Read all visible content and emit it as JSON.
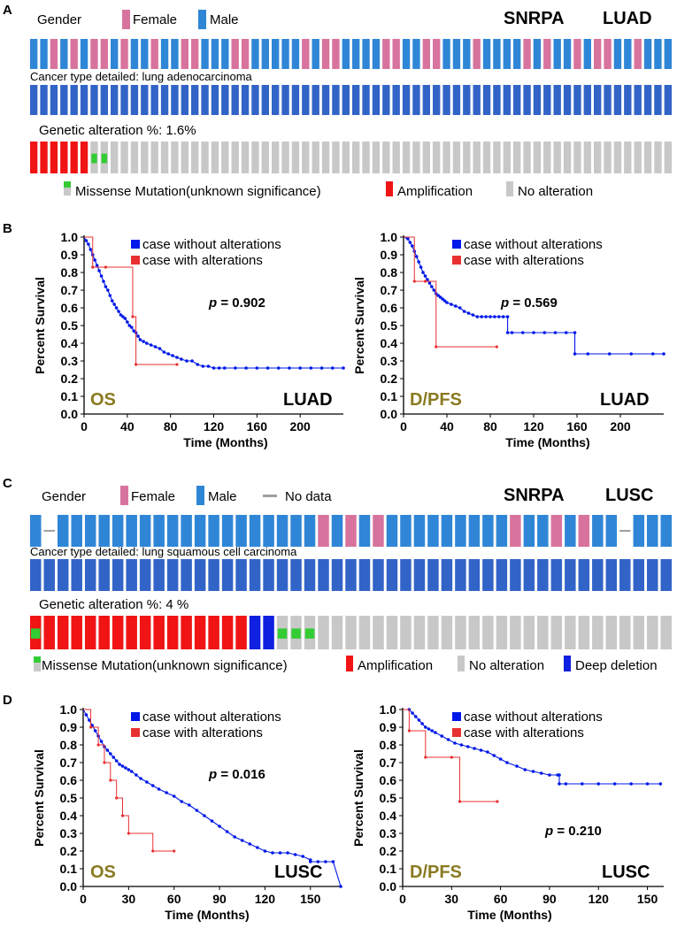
{
  "colors": {
    "female": "#d8739e",
    "male": "#2f86d6",
    "cancer_type": "#3264c8",
    "amplification": "#f01414",
    "deep_deletion": "#1020e0",
    "missense": "#33cc33",
    "no_alteration": "#c8c8c8",
    "no_data": "#a0a0a0",
    "km_without": "#0018e8",
    "km_with": "#e83030",
    "annotation_olive": "#8a7a20"
  },
  "panels": {
    "A": {
      "letter": "A",
      "gender_label": "Gender",
      "female_label": "Female",
      "male_label": "Male",
      "gene": "SNRPA",
      "cancer": "LUAD",
      "cancer_type_label": "Cancer type detailed: lung adenocarcinoma",
      "alteration_label": "Genetic alteration %:  1.6%",
      "legend": {
        "missense": "Missense Mutation(unknown significance)",
        "amplification": "Amplification",
        "no_alteration": "No alteration"
      },
      "gender_track": "MMFMFMFFMFMMFMMFFMMMFFMMMMMFMFFMMMMFFMMFFMMMFMMMMFMFMMFMFFMMFMMM",
      "alteration_track": "AAAAAANNNNNNNNNNNNNNNNNNNNNNNNNNNNNNNNNNNNNNNNNNNNNNNNNNNNNNNNNNN",
      "missense_indices": [
        6,
        7
      ]
    },
    "C": {
      "letter": "C",
      "gender_label": "Gender",
      "female_label": "Female",
      "male_label": "Male",
      "no_data_label": "No data",
      "gene": "SNRPA",
      "cancer": "LUSC",
      "cancer_type_label": "Cancer type detailed: lung squamous cell carcinoma",
      "alteration_label": "Genetic alteration %:  4 %",
      "legend": {
        "missense": "Missense Mutation(unknown significance)",
        "amplification": "Amplification",
        "no_alteration": "No alteration",
        "deep_deletion": "Deep deletion"
      },
      "gender_track": "MXMMMMMMMMMMMMMMMMMMMFMFMFMMMMMMMMMFMMFMFMMXMMM",
      "alteration_track": "AAAAAAAAAAAAAAAADDNNNNNNNNNNNNNNNNNNNNNNNNNNNNNN",
      "missense_indices": [
        0,
        18,
        19,
        20
      ]
    }
  },
  "chart_data": [
    {
      "id": "B-OS",
      "panel_letter": "B",
      "type": "line",
      "title": "",
      "xlabel": "Time (Months)",
      "ylabel": "Percent Survival",
      "xlim": [
        0,
        240
      ],
      "ylim": [
        0,
        1.0
      ],
      "xticks": [
        0,
        40,
        80,
        120,
        160,
        200
      ],
      "yticks": [
        0.0,
        0.1,
        0.2,
        0.3,
        0.4,
        0.5,
        0.6,
        0.7,
        0.8,
        0.9,
        1.0
      ],
      "p_value": "= 0.902",
      "endpoint": "OS",
      "cancer": "LUAD",
      "series": [
        {
          "name": "case without alterations",
          "key": "without",
          "x": [
            0,
            2,
            4,
            6,
            8,
            10,
            12,
            14,
            16,
            18,
            20,
            22,
            24,
            26,
            28,
            30,
            32,
            34,
            36,
            38,
            40,
            42,
            44,
            46,
            48,
            50,
            52,
            55,
            58,
            62,
            66,
            70,
            74,
            78,
            82,
            86,
            90,
            95,
            100,
            105,
            110,
            115,
            120,
            125,
            130,
            140,
            150,
            160,
            170,
            180,
            190,
            200,
            210,
            220,
            230,
            240
          ],
          "y": [
            1.0,
            0.98,
            0.96,
            0.93,
            0.9,
            0.87,
            0.84,
            0.81,
            0.78,
            0.75,
            0.72,
            0.7,
            0.67,
            0.64,
            0.62,
            0.6,
            0.58,
            0.56,
            0.55,
            0.54,
            0.52,
            0.5,
            0.49,
            0.47,
            0.46,
            0.44,
            0.42,
            0.41,
            0.4,
            0.39,
            0.38,
            0.37,
            0.35,
            0.34,
            0.33,
            0.32,
            0.31,
            0.3,
            0.3,
            0.28,
            0.27,
            0.27,
            0.26,
            0.26,
            0.26,
            0.26,
            0.26,
            0.26,
            0.26,
            0.26,
            0.26,
            0.26,
            0.26,
            0.26,
            0.26,
            0.26
          ]
        },
        {
          "name": "case with alterations",
          "key": "with",
          "x": [
            0,
            8,
            8,
            20,
            20,
            45,
            45,
            48,
            48,
            86
          ],
          "y": [
            1.0,
            1.0,
            0.83,
            0.83,
            0.83,
            0.83,
            0.55,
            0.55,
            0.28,
            0.28
          ]
        }
      ]
    },
    {
      "id": "B-DPFS",
      "panel_letter": "",
      "type": "line",
      "title": "",
      "xlabel": "Time (Months)",
      "ylabel": "Percent Survival",
      "xlim": [
        0,
        240
      ],
      "ylim": [
        0,
        1.0
      ],
      "xticks": [
        0,
        40,
        80,
        120,
        160,
        200
      ],
      "yticks": [
        0.0,
        0.1,
        0.2,
        0.3,
        0.4,
        0.5,
        0.6,
        0.7,
        0.8,
        0.9,
        1.0
      ],
      "p_value": "= 0.569",
      "endpoint": "D/PFS",
      "cancer": "LUAD",
      "series": [
        {
          "name": "case without alterations",
          "key": "without",
          "x": [
            0,
            4,
            6,
            8,
            10,
            12,
            14,
            16,
            18,
            20,
            22,
            24,
            26,
            28,
            30,
            32,
            34,
            36,
            38,
            40,
            44,
            48,
            52,
            56,
            60,
            64,
            68,
            72,
            76,
            80,
            84,
            88,
            92,
            96,
            96,
            100,
            110,
            120,
            130,
            140,
            150,
            158,
            158,
            170,
            190,
            210,
            230,
            240
          ],
          "y": [
            1.0,
            0.99,
            0.97,
            0.95,
            0.92,
            0.89,
            0.86,
            0.83,
            0.8,
            0.78,
            0.76,
            0.74,
            0.72,
            0.7,
            0.68,
            0.67,
            0.66,
            0.65,
            0.64,
            0.63,
            0.62,
            0.61,
            0.6,
            0.58,
            0.57,
            0.56,
            0.55,
            0.55,
            0.55,
            0.55,
            0.55,
            0.55,
            0.55,
            0.55,
            0.46,
            0.46,
            0.46,
            0.46,
            0.46,
            0.46,
            0.46,
            0.46,
            0.34,
            0.34,
            0.34,
            0.34,
            0.34,
            0.34
          ]
        },
        {
          "name": "case with alterations",
          "key": "with",
          "x": [
            0,
            10,
            10,
            20,
            20,
            30,
            30,
            86
          ],
          "y": [
            1.0,
            1.0,
            0.75,
            0.75,
            0.75,
            0.75,
            0.38,
            0.38
          ]
        }
      ]
    },
    {
      "id": "D-OS",
      "panel_letter": "D",
      "type": "line",
      "title": "",
      "xlabel": "Time (Months)",
      "ylabel": "Percent Survival",
      "xlim": [
        0,
        170
      ],
      "ylim": [
        0,
        1.0
      ],
      "xticks": [
        0,
        30,
        60,
        90,
        120,
        150
      ],
      "yticks": [
        0.0,
        0.1,
        0.2,
        0.3,
        0.4,
        0.5,
        0.6,
        0.7,
        0.8,
        0.9,
        1.0
      ],
      "p_value": "= 0.016",
      "endpoint": "OS",
      "cancer": "LUSC",
      "series": [
        {
          "name": "case without alterations",
          "key": "without",
          "x": [
            0,
            2,
            4,
            6,
            8,
            10,
            12,
            14,
            16,
            18,
            20,
            22,
            24,
            26,
            28,
            30,
            32,
            35,
            38,
            42,
            46,
            50,
            55,
            60,
            65,
            70,
            75,
            80,
            85,
            90,
            95,
            100,
            105,
            110,
            115,
            120,
            125,
            130,
            135,
            140,
            145,
            150,
            150,
            155,
            160,
            165,
            170
          ],
          "y": [
            1.0,
            0.97,
            0.94,
            0.91,
            0.88,
            0.85,
            0.82,
            0.79,
            0.77,
            0.75,
            0.73,
            0.71,
            0.69,
            0.68,
            0.67,
            0.66,
            0.65,
            0.63,
            0.61,
            0.59,
            0.57,
            0.55,
            0.53,
            0.51,
            0.48,
            0.46,
            0.43,
            0.4,
            0.37,
            0.34,
            0.31,
            0.28,
            0.26,
            0.24,
            0.22,
            0.2,
            0.19,
            0.19,
            0.19,
            0.18,
            0.17,
            0.15,
            0.14,
            0.14,
            0.14,
            0.14,
            0.0
          ]
        },
        {
          "name": "case with alterations",
          "key": "with",
          "x": [
            0,
            5,
            5,
            10,
            10,
            14,
            14,
            18,
            18,
            22,
            22,
            26,
            26,
            30,
            30,
            46,
            46,
            60
          ],
          "y": [
            1.0,
            1.0,
            0.9,
            0.9,
            0.8,
            0.8,
            0.7,
            0.7,
            0.6,
            0.6,
            0.5,
            0.5,
            0.4,
            0.4,
            0.3,
            0.3,
            0.2,
            0.2
          ]
        }
      ]
    },
    {
      "id": "D-DPFS",
      "panel_letter": "",
      "type": "line",
      "title": "",
      "xlabel": "Time (Months)",
      "ylabel": "Percent Survival",
      "xlim": [
        0,
        160
      ],
      "ylim": [
        0,
        1.0
      ],
      "xticks": [
        0,
        30,
        60,
        90,
        120,
        150
      ],
      "yticks": [
        0.0,
        0.1,
        0.2,
        0.3,
        0.4,
        0.5,
        0.6,
        0.7,
        0.8,
        0.9,
        1.0
      ],
      "p_value": "= 0.210",
      "endpoint": "D/PFS",
      "cancer": "LUSC",
      "series": [
        {
          "name": "case without alterations",
          "key": "without",
          "x": [
            0,
            4,
            6,
            8,
            10,
            12,
            14,
            16,
            18,
            20,
            24,
            28,
            32,
            36,
            40,
            44,
            48,
            52,
            56,
            60,
            64,
            70,
            75,
            80,
            85,
            90,
            95,
            96,
            96,
            100,
            110,
            120,
            130,
            140,
            150,
            158
          ],
          "y": [
            1.0,
            1.0,
            0.98,
            0.96,
            0.94,
            0.92,
            0.9,
            0.89,
            0.88,
            0.87,
            0.85,
            0.83,
            0.81,
            0.8,
            0.79,
            0.78,
            0.77,
            0.76,
            0.74,
            0.72,
            0.7,
            0.68,
            0.66,
            0.65,
            0.64,
            0.63,
            0.63,
            0.63,
            0.58,
            0.58,
            0.58,
            0.58,
            0.58,
            0.58,
            0.58,
            0.58
          ]
        },
        {
          "name": "case with alterations",
          "key": "with",
          "x": [
            0,
            4,
            4,
            14,
            14,
            30,
            30,
            35,
            35,
            58
          ],
          "y": [
            1.0,
            1.0,
            0.88,
            0.88,
            0.73,
            0.73,
            0.73,
            0.73,
            0.48,
            0.48
          ]
        }
      ]
    }
  ]
}
